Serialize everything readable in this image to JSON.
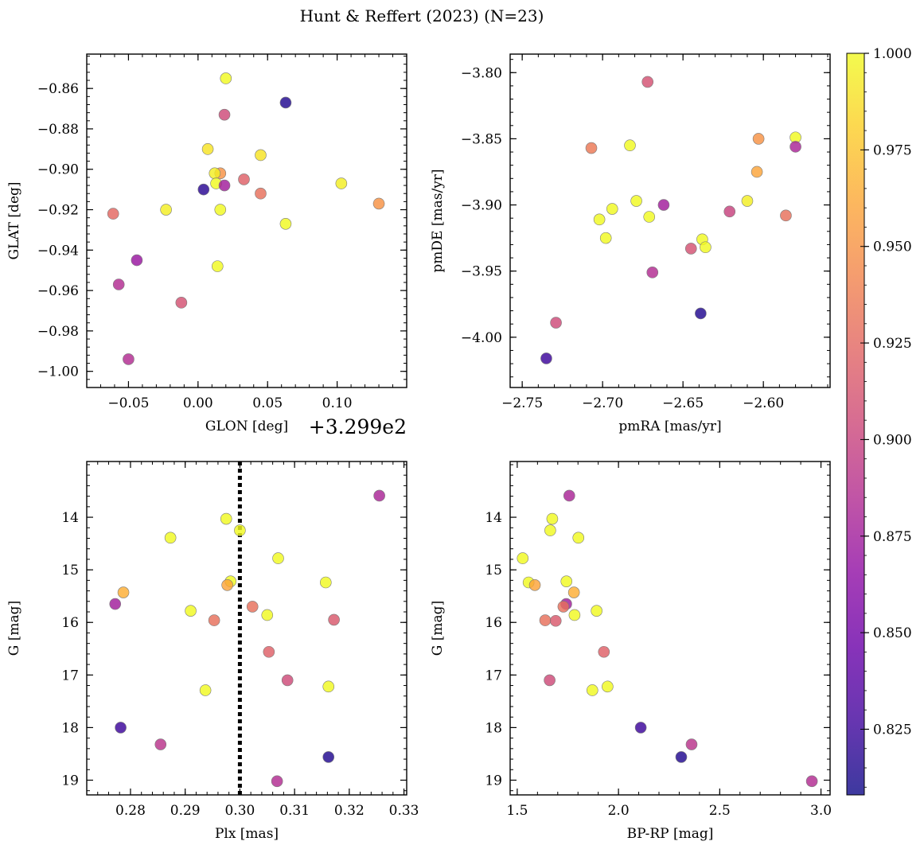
{
  "figure": {
    "title": "Hunt & Reffert (2023) (N=23)"
  },
  "colormap": {
    "name": "plasma",
    "range": [
      0.808,
      1.0
    ],
    "ticks": [
      "1.000",
      "0.975",
      "0.950",
      "0.925",
      "0.900",
      "0.875",
      "0.850",
      "0.825"
    ],
    "tick_values": [
      1.0,
      0.975,
      0.95,
      0.925,
      0.9,
      0.875,
      0.85,
      0.825
    ]
  },
  "chart_data": [
    {
      "type": "scatter",
      "id": "glon_glat",
      "xlabel": "GLON [deg]",
      "x_offset_label": "+3.299e2",
      "ylabel": "GLAT [deg]",
      "xlim": [
        -0.08,
        0.15
      ],
      "ylim": [
        -1.008,
        -0.843
      ],
      "y_inverted": false,
      "xticks": [
        -0.05,
        0.0,
        0.05,
        0.1
      ],
      "xtick_labels": [
        "−0.05",
        "0.00",
        "0.05",
        "0.10"
      ],
      "yticks": [
        -0.86,
        -0.88,
        -0.9,
        -0.92,
        -0.94,
        -0.96,
        -0.98,
        -1.0
      ],
      "ytick_labels": [
        "−0.86",
        "−0.88",
        "−0.90",
        "−0.92",
        "−0.94",
        "−0.96",
        "−0.98",
        "−1.00"
      ],
      "grid": false,
      "points": [
        {
          "x": 0.02,
          "y": -0.855,
          "c": 1.0
        },
        {
          "x": 0.063,
          "y": -0.867,
          "c": 0.815
        },
        {
          "x": 0.019,
          "y": -0.873,
          "c": 0.905
        },
        {
          "x": 0.007,
          "y": -0.89,
          "c": 0.99
        },
        {
          "x": 0.045,
          "y": -0.893,
          "c": 0.99
        },
        {
          "x": 0.016,
          "y": -0.902,
          "c": 0.95
        },
        {
          "x": 0.012,
          "y": -0.902,
          "c": 0.995
        },
        {
          "x": 0.013,
          "y": -0.907,
          "c": 1.0
        },
        {
          "x": 0.033,
          "y": -0.905,
          "c": 0.92
        },
        {
          "x": 0.103,
          "y": -0.907,
          "c": 0.995
        },
        {
          "x": 0.004,
          "y": -0.91,
          "c": 0.818
        },
        {
          "x": 0.019,
          "y": -0.908,
          "c": 0.875
        },
        {
          "x": 0.045,
          "y": -0.912,
          "c": 0.93
        },
        {
          "x": 0.13,
          "y": -0.917,
          "c": 0.95
        },
        {
          "x": -0.061,
          "y": -0.922,
          "c": 0.925
        },
        {
          "x": -0.023,
          "y": -0.92,
          "c": 0.995
        },
        {
          "x": 0.016,
          "y": -0.92,
          "c": 1.0
        },
        {
          "x": 0.063,
          "y": -0.927,
          "c": 1.0
        },
        {
          "x": -0.044,
          "y": -0.945,
          "c": 0.87
        },
        {
          "x": 0.014,
          "y": -0.948,
          "c": 1.0
        },
        {
          "x": -0.057,
          "y": -0.957,
          "c": 0.885
        },
        {
          "x": -0.012,
          "y": -0.966,
          "c": 0.91
        },
        {
          "x": -0.05,
          "y": -0.994,
          "c": 0.885
        }
      ]
    },
    {
      "type": "scatter",
      "id": "pmra_pmde",
      "xlabel": "pmRA [mas/yr]",
      "ylabel": "pmDE [mas/yr]",
      "xlim": [
        -2.7575,
        -2.5585
      ],
      "ylim": [
        -4.038,
        -3.786
      ],
      "y_inverted": false,
      "xticks": [
        -2.75,
        -2.7,
        -2.65,
        -2.6
      ],
      "xtick_labels": [
        "−2.75",
        "−2.70",
        "−2.65",
        "−2.60"
      ],
      "yticks": [
        -3.8,
        -3.85,
        -3.9,
        -3.95,
        -4.0
      ],
      "ytick_labels": [
        "−3.80",
        "−3.85",
        "−3.90",
        "−3.95",
        "−4.00"
      ],
      "grid": false,
      "points": [
        {
          "x": -2.672,
          "y": -3.807,
          "c": 0.91
        },
        {
          "x": -2.58,
          "y": -3.849,
          "c": 1.0
        },
        {
          "x": -2.603,
          "y": -3.85,
          "c": 0.95
        },
        {
          "x": -2.58,
          "y": -3.856,
          "c": 0.88
        },
        {
          "x": -2.707,
          "y": -3.857,
          "c": 0.935
        },
        {
          "x": -2.683,
          "y": -3.855,
          "c": 1.0
        },
        {
          "x": -2.604,
          "y": -3.875,
          "c": 0.96
        },
        {
          "x": -2.679,
          "y": -3.897,
          "c": 1.0
        },
        {
          "x": -2.61,
          "y": -3.897,
          "c": 0.995
        },
        {
          "x": -2.662,
          "y": -3.9,
          "c": 0.875
        },
        {
          "x": -2.694,
          "y": -3.903,
          "c": 1.0
        },
        {
          "x": -2.621,
          "y": -3.905,
          "c": 0.9
        },
        {
          "x": -2.586,
          "y": -3.908,
          "c": 0.93
        },
        {
          "x": -2.702,
          "y": -3.911,
          "c": 1.0
        },
        {
          "x": -2.671,
          "y": -3.909,
          "c": 1.0
        },
        {
          "x": -2.698,
          "y": -3.925,
          "c": 1.0
        },
        {
          "x": -2.638,
          "y": -3.926,
          "c": 1.0
        },
        {
          "x": -2.636,
          "y": -3.932,
          "c": 1.0
        },
        {
          "x": -2.645,
          "y": -3.933,
          "c": 0.91
        },
        {
          "x": -2.669,
          "y": -3.951,
          "c": 0.885
        },
        {
          "x": -2.639,
          "y": -3.982,
          "c": 0.815
        },
        {
          "x": -2.729,
          "y": -3.989,
          "c": 0.905
        },
        {
          "x": -2.735,
          "y": -4.016,
          "c": 0.825
        }
      ]
    },
    {
      "type": "scatter",
      "id": "plx_g",
      "xlabel": "Plx [mas]",
      "ylabel": "G [mag]",
      "xlim": [
        0.272,
        0.3305
      ],
      "ylim": [
        19.28,
        12.94
      ],
      "y_inverted": true,
      "xticks": [
        0.28,
        0.29,
        0.3,
        0.31,
        0.32,
        0.33
      ],
      "xtick_labels": [
        "0.28",
        "0.29",
        "0.30",
        "0.31",
        "0.32",
        "0.33"
      ],
      "yticks": [
        14,
        15,
        16,
        17,
        18,
        19
      ],
      "ytick_labels": [
        "14",
        "15",
        "16",
        "17",
        "18",
        "19"
      ],
      "grid": false,
      "vline": {
        "x": 0.3,
        "style": "dotted"
      },
      "points": [
        {
          "x": 0.3255,
          "y": 13.59,
          "c": 0.88
        },
        {
          "x": 0.2975,
          "y": 14.03,
          "c": 1.0
        },
        {
          "x": 0.3,
          "y": 14.25,
          "c": 1.0
        },
        {
          "x": 0.2873,
          "y": 14.39,
          "c": 1.0
        },
        {
          "x": 0.307,
          "y": 14.78,
          "c": 1.0
        },
        {
          "x": 0.2983,
          "y": 15.22,
          "c": 1.0
        },
        {
          "x": 0.3157,
          "y": 15.24,
          "c": 1.0
        },
        {
          "x": 0.2977,
          "y": 15.29,
          "c": 0.96
        },
        {
          "x": 0.2787,
          "y": 15.43,
          "c": 0.965
        },
        {
          "x": 0.2772,
          "y": 15.65,
          "c": 0.875
        },
        {
          "x": 0.3023,
          "y": 15.7,
          "c": 0.93
        },
        {
          "x": 0.291,
          "y": 15.78,
          "c": 1.0
        },
        {
          "x": 0.305,
          "y": 15.86,
          "c": 1.0
        },
        {
          "x": 0.2953,
          "y": 15.96,
          "c": 0.93
        },
        {
          "x": 0.3172,
          "y": 15.95,
          "c": 0.915
        },
        {
          "x": 0.3053,
          "y": 16.56,
          "c": 0.92
        },
        {
          "x": 0.3087,
          "y": 17.1,
          "c": 0.905
        },
        {
          "x": 0.3162,
          "y": 17.22,
          "c": 1.0
        },
        {
          "x": 0.2937,
          "y": 17.29,
          "c": 1.0
        },
        {
          "x": 0.2782,
          "y": 18.0,
          "c": 0.825
        },
        {
          "x": 0.2855,
          "y": 18.32,
          "c": 0.89
        },
        {
          "x": 0.3162,
          "y": 18.56,
          "c": 0.815
        },
        {
          "x": 0.3068,
          "y": 19.02,
          "c": 0.885
        }
      ]
    },
    {
      "type": "scatter",
      "id": "bprp_g",
      "xlabel": "BP-RP [mag]",
      "ylabel": "G [mag]",
      "xlim": [
        1.465,
        3.045
      ],
      "ylim": [
        19.28,
        12.94
      ],
      "y_inverted": true,
      "xticks": [
        1.5,
        2.0,
        2.5,
        3.0
      ],
      "xtick_labels": [
        "1.5",
        "2.0",
        "2.5",
        "3.0"
      ],
      "yticks": [
        14,
        15,
        16,
        17,
        18,
        19
      ],
      "ytick_labels": [
        "14",
        "15",
        "16",
        "17",
        "18",
        "19"
      ],
      "grid": false,
      "points": [
        {
          "x": 1.757,
          "y": 13.59,
          "c": 0.88
        },
        {
          "x": 1.673,
          "y": 14.03,
          "c": 1.0
        },
        {
          "x": 1.663,
          "y": 14.25,
          "c": 1.0
        },
        {
          "x": 1.802,
          "y": 14.39,
          "c": 1.0
        },
        {
          "x": 1.527,
          "y": 14.78,
          "c": 1.0
        },
        {
          "x": 1.743,
          "y": 15.22,
          "c": 1.0
        },
        {
          "x": 1.556,
          "y": 15.24,
          "c": 1.0
        },
        {
          "x": 1.587,
          "y": 15.29,
          "c": 0.96
        },
        {
          "x": 1.78,
          "y": 15.43,
          "c": 0.965
        },
        {
          "x": 1.742,
          "y": 15.65,
          "c": 0.875
        },
        {
          "x": 1.728,
          "y": 15.7,
          "c": 0.93
        },
        {
          "x": 1.892,
          "y": 15.78,
          "c": 1.0
        },
        {
          "x": 1.783,
          "y": 15.86,
          "c": 1.0
        },
        {
          "x": 1.638,
          "y": 15.96,
          "c": 0.93
        },
        {
          "x": 1.69,
          "y": 15.97,
          "c": 0.915
        },
        {
          "x": 1.928,
          "y": 16.56,
          "c": 0.92
        },
        {
          "x": 1.66,
          "y": 17.1,
          "c": 0.905
        },
        {
          "x": 1.946,
          "y": 17.22,
          "c": 1.0
        },
        {
          "x": 1.871,
          "y": 17.29,
          "c": 1.0
        },
        {
          "x": 2.11,
          "y": 18.0,
          "c": 0.825
        },
        {
          "x": 2.361,
          "y": 18.32,
          "c": 0.89
        },
        {
          "x": 2.31,
          "y": 18.56,
          "c": 0.815
        },
        {
          "x": 2.955,
          "y": 19.02,
          "c": 0.885
        }
      ]
    }
  ]
}
